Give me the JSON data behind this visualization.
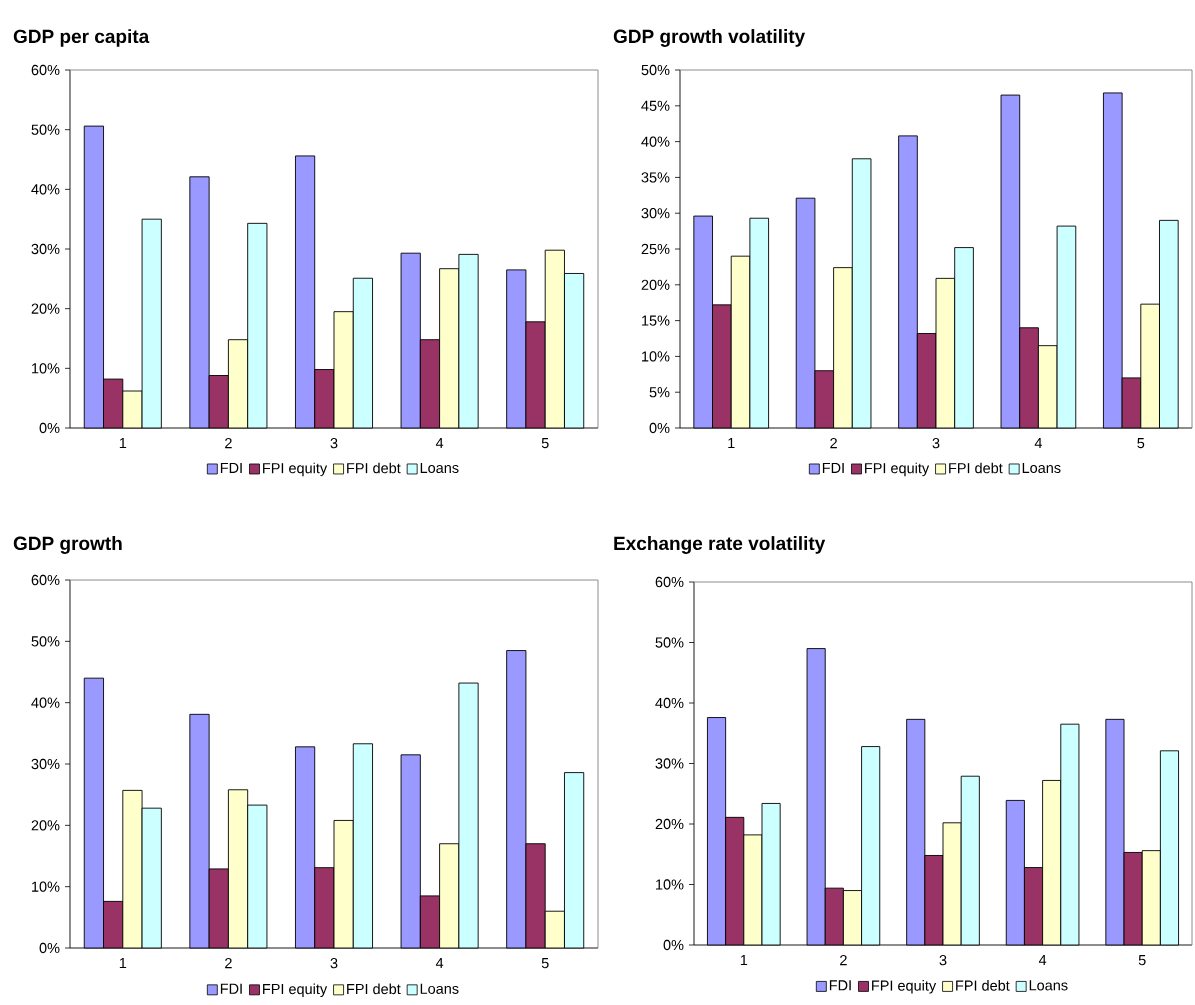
{
  "chart_data": [
    {
      "type": "bar",
      "title": "GDP per capita",
      "categories": [
        "1",
        "2",
        "3",
        "4",
        "5"
      ],
      "series": [
        {
          "name": "FDI",
          "color": "#9999ff",
          "values": [
            50.6,
            42.1,
            45.6,
            29.3,
            26.5
          ]
        },
        {
          "name": "FPI equity",
          "color": "#993366",
          "values": [
            8.2,
            8.8,
            9.8,
            14.8,
            17.8
          ]
        },
        {
          "name": "FPI debt",
          "color": "#ffffcc",
          "values": [
            6.2,
            14.8,
            19.5,
            26.7,
            29.8
          ]
        },
        {
          "name": "Loans",
          "color": "#ccffff",
          "values": [
            35.0,
            34.3,
            25.1,
            29.1,
            25.9
          ]
        }
      ],
      "ylim": [
        0,
        60
      ],
      "yticks": [
        {
          "value": 0,
          "label": "0%"
        },
        {
          "value": 10,
          "label": "10%"
        },
        {
          "value": 20,
          "label": "20%"
        },
        {
          "value": 30,
          "label": "30%"
        },
        {
          "value": 40,
          "label": "40%"
        },
        {
          "value": 50,
          "label": "50%"
        },
        {
          "value": 60,
          "label": "60%"
        }
      ],
      "legend": "bottom"
    },
    {
      "type": "bar",
      "title": "GDP growth volatility",
      "categories": [
        "1",
        "2",
        "3",
        "4",
        "5"
      ],
      "series": [
        {
          "name": "FDI",
          "color": "#9999ff",
          "values": [
            29.6,
            32.1,
            40.8,
            46.5,
            46.8
          ]
        },
        {
          "name": "FPI equity",
          "color": "#993366",
          "values": [
            17.2,
            8.0,
            13.2,
            14.0,
            7.0
          ]
        },
        {
          "name": "FPI debt",
          "color": "#ffffcc",
          "values": [
            24.0,
            22.4,
            20.9,
            11.5,
            17.3
          ]
        },
        {
          "name": "Loans",
          "color": "#ccffff",
          "values": [
            29.3,
            37.6,
            25.2,
            28.2,
            29.0
          ]
        }
      ],
      "ylim": [
        0,
        50
      ],
      "yticks": [
        {
          "value": 0,
          "label": "0%"
        },
        {
          "value": 5,
          "label": "5%"
        },
        {
          "value": 10,
          "label": "10%"
        },
        {
          "value": 15,
          "label": "15%"
        },
        {
          "value": 20,
          "label": "20%"
        },
        {
          "value": 25,
          "label": "25%"
        },
        {
          "value": 30,
          "label": "30%"
        },
        {
          "value": 35,
          "label": "35%"
        },
        {
          "value": 40,
          "label": "40%"
        },
        {
          "value": 45,
          "label": "45%"
        },
        {
          "value": 50,
          "label": "50%"
        }
      ],
      "legend": "bottom"
    },
    {
      "type": "bar",
      "title": "GDP growth",
      "categories": [
        "1",
        "2",
        "3",
        "4",
        "5"
      ],
      "series": [
        {
          "name": "FDI",
          "color": "#9999ff",
          "values": [
            44.0,
            38.1,
            32.8,
            31.5,
            48.5
          ]
        },
        {
          "name": "FPI equity",
          "color": "#993366",
          "values": [
            7.6,
            12.9,
            13.1,
            8.5,
            17.0
          ]
        },
        {
          "name": "FPI debt",
          "color": "#ffffcc",
          "values": [
            25.7,
            25.8,
            20.8,
            17.0,
            6.0
          ]
        },
        {
          "name": "Loans",
          "color": "#ccffff",
          "values": [
            22.8,
            23.3,
            33.3,
            43.2,
            28.6
          ]
        }
      ],
      "ylim": [
        0,
        60
      ],
      "yticks": [
        {
          "value": 0,
          "label": "0%"
        },
        {
          "value": 10,
          "label": "10%"
        },
        {
          "value": 20,
          "label": "20%"
        },
        {
          "value": 30,
          "label": "30%"
        },
        {
          "value": 40,
          "label": "40%"
        },
        {
          "value": 50,
          "label": "50%"
        },
        {
          "value": 60,
          "label": "60%"
        }
      ],
      "legend": "bottom"
    },
    {
      "type": "bar",
      "title": "Exchange rate volatility",
      "categories": [
        "1",
        "2",
        "3",
        "4",
        "5"
      ],
      "series": [
        {
          "name": "FDI",
          "color": "#9999ff",
          "values": [
            37.6,
            49.0,
            37.3,
            23.9,
            37.3
          ]
        },
        {
          "name": "FPI equity",
          "color": "#993366",
          "values": [
            21.1,
            9.4,
            14.8,
            12.8,
            15.3
          ]
        },
        {
          "name": "FPI debt",
          "color": "#ffffcc",
          "values": [
            18.2,
            9.0,
            20.2,
            27.2,
            15.6
          ]
        },
        {
          "name": "Loans",
          "color": "#ccffff",
          "values": [
            23.4,
            32.8,
            27.9,
            36.5,
            32.1
          ]
        }
      ],
      "ylim": [
        0,
        60
      ],
      "yticks": [
        {
          "value": 0,
          "label": "0%"
        },
        {
          "value": 10,
          "label": "10%"
        },
        {
          "value": 20,
          "label": "20%"
        },
        {
          "value": 30,
          "label": "30%"
        },
        {
          "value": 40,
          "label": "40%"
        },
        {
          "value": 50,
          "label": "50%"
        },
        {
          "value": 60,
          "label": "60%"
        }
      ],
      "legend": "bottom"
    }
  ]
}
